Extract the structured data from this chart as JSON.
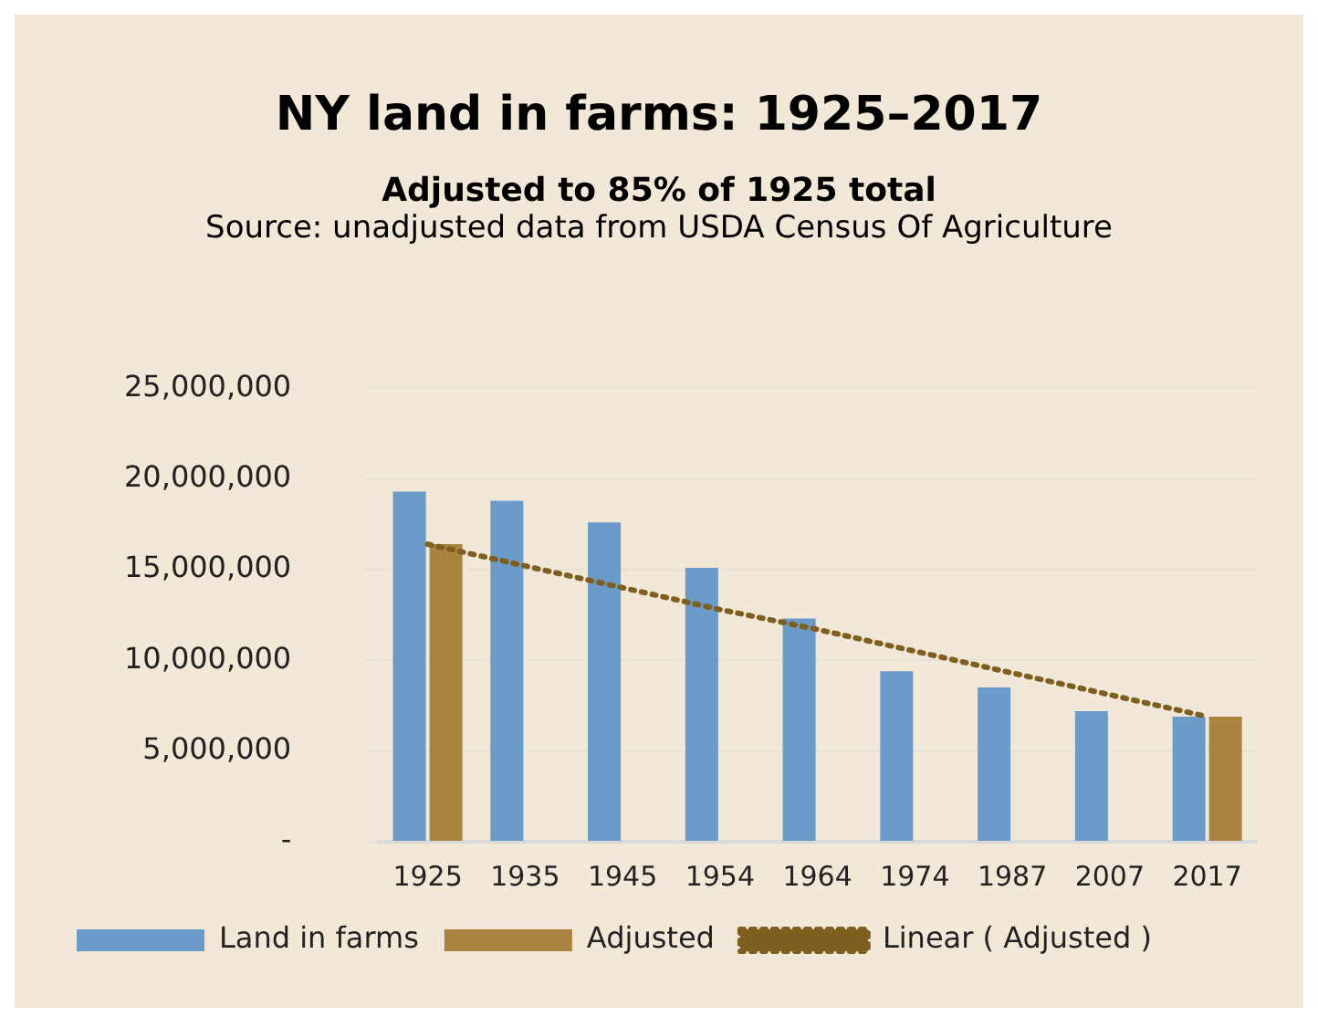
{
  "chart_data": {
    "type": "bar",
    "title": "NY land in farms: 1925–2017",
    "subtitle": "Adjusted to 85% of 1925 total",
    "annotations": [
      "Source: unadjusted data from USDA Census Of Agriculture"
    ],
    "categories": [
      "1925",
      "1935",
      "1945",
      "1954",
      "1964",
      "1974",
      "1987",
      "2007",
      "2017"
    ],
    "series": [
      {
        "name": "Land in farms",
        "color": "#6a9bc9",
        "values": [
          19300000,
          18800000,
          17600000,
          15100000,
          12300000,
          9400000,
          8500000,
          7200000,
          6900000
        ]
      },
      {
        "name": "Adjusted",
        "color": "#a98340",
        "values": [
          16400000,
          null,
          null,
          null,
          null,
          null,
          null,
          null,
          6900000
        ]
      },
      {
        "name": "Linear ( Adjusted )",
        "type": "line",
        "color": "#7f5f1f",
        "line_style": "dotted",
        "marker": "none",
        "values": [
          16400000,
          15200000,
          14000000,
          12800000,
          11700000,
          10500000,
          9300000,
          8100000,
          6900000
        ]
      }
    ],
    "ylim": [
      0,
      25000000
    ],
    "yticks": [
      {
        "value": 0,
        "label": "-"
      },
      {
        "value": 5000000,
        "label": "5,000,000"
      },
      {
        "value": 10000000,
        "label": "10,000,000"
      },
      {
        "value": 15000000,
        "label": "15,000,000"
      },
      {
        "value": 20000000,
        "label": "20,000,000"
      },
      {
        "value": 25000000,
        "label": "25,000,000"
      }
    ],
    "grid": "y",
    "legend": "bottom"
  }
}
